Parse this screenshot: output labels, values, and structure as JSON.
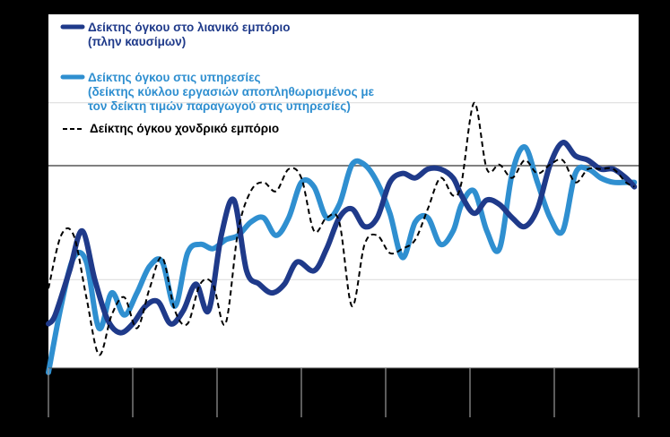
{
  "chart_data": {
    "type": "line",
    "title": "",
    "xlabel": "",
    "ylabel": "",
    "x_categories_count": 7,
    "x_tick_labels": [],
    "y_tick_labels": [],
    "ylim": [
      -4,
      4
    ],
    "reference_line_y": 0,
    "grid": "horizontal",
    "legend_placement": "top-left",
    "series": [
      {
        "name": "Δείκτης όγκου στο λιανικό εμπόριο",
        "name_line2": "(πλην καυσίμων)",
        "color": "#1F3A8A",
        "style": "solid-thick",
        "x": [
          0.0,
          0.08,
          0.25,
          0.4,
          0.55,
          0.7,
          0.85,
          1.0,
          1.15,
          1.3,
          1.45,
          1.6,
          1.75,
          1.9,
          2.05,
          2.2,
          2.35,
          2.5,
          2.65,
          2.8,
          2.95,
          3.15,
          3.3,
          3.45,
          3.6,
          3.75,
          3.9,
          4.05,
          4.2,
          4.35,
          4.5,
          4.65,
          4.8,
          4.9,
          5.05,
          5.2,
          5.35,
          5.5,
          5.65,
          5.8,
          5.95,
          6.1,
          6.25,
          6.4,
          6.55,
          6.7,
          6.85,
          6.95
        ],
        "values": [
          -3.0,
          -2.8,
          -1.8,
          -0.9,
          -2.0,
          -2.9,
          -3.2,
          -3.0,
          -2.6,
          -2.5,
          -3.0,
          -2.7,
          -2.1,
          -2.7,
          -1.0,
          -0.2,
          -1.8,
          -2.1,
          -2.3,
          -2.1,
          -1.6,
          -1.8,
          -1.3,
          -0.6,
          -0.4,
          -0.8,
          -0.6,
          0.2,
          0.4,
          0.3,
          0.5,
          0.5,
          0.3,
          -0.1,
          -0.5,
          -0.2,
          -0.3,
          -0.6,
          -0.8,
          -0.4,
          0.6,
          1.1,
          0.8,
          0.7,
          0.5,
          0.5,
          0.3,
          0.1
        ]
      },
      {
        "name": "Δείκτης όγκου στις υπηρεσίες",
        "name_line2": "(δείκτης κύκλου εργασιών αποπληθωρισμένος με",
        "name_line3": "τον δείκτη τιμών παραγωγού στις υπηρεσίες)",
        "color": "#2F8FD0",
        "style": "solid-thick",
        "x": [
          0.0,
          0.15,
          0.3,
          0.45,
          0.6,
          0.75,
          0.9,
          1.05,
          1.2,
          1.35,
          1.5,
          1.65,
          1.8,
          1.95,
          2.1,
          2.25,
          2.4,
          2.55,
          2.7,
          2.85,
          3.0,
          3.15,
          3.3,
          3.45,
          3.6,
          3.75,
          3.9,
          4.05,
          4.2,
          4.35,
          4.5,
          4.65,
          4.8,
          4.9,
          5.05,
          5.2,
          5.35,
          5.5,
          5.65,
          5.8,
          5.95,
          6.1,
          6.25,
          6.4,
          6.55,
          6.7,
          6.85,
          6.95
        ],
        "values": [
          -4.1,
          -2.6,
          -1.5,
          -1.6,
          -3.1,
          -2.3,
          -2.8,
          -2.3,
          -1.7,
          -1.6,
          -2.6,
          -1.4,
          -1.2,
          -1.3,
          -1.1,
          -1.0,
          -0.7,
          -0.6,
          -1.0,
          -0.6,
          0.2,
          0.1,
          -0.6,
          -0.3,
          0.6,
          0.6,
          0.2,
          -0.5,
          -1.5,
          -0.7,
          -0.6,
          -1.2,
          -0.9,
          -0.3,
          0.0,
          -0.9,
          -1.3,
          0.4,
          1.0,
          0.2,
          -0.6,
          -0.9,
          0.4,
          0.5,
          0.3,
          0.2,
          0.2,
          0.2
        ]
      },
      {
        "name": "Δείκτης όγκου χονδρικό εμπόριο",
        "color": "#000000",
        "style": "dashed",
        "x": [
          0.0,
          0.15,
          0.3,
          0.45,
          0.6,
          0.75,
          0.9,
          1.05,
          1.2,
          1.35,
          1.5,
          1.65,
          1.8,
          1.95,
          2.1,
          2.25,
          2.4,
          2.55,
          2.7,
          2.85,
          3.0,
          3.15,
          3.3,
          3.45,
          3.6,
          3.75,
          3.9,
          4.05,
          4.2,
          4.35,
          4.5,
          4.65,
          4.8,
          4.9,
          5.05,
          5.2,
          5.35,
          5.5,
          5.65,
          5.8,
          5.95,
          6.1,
          6.25,
          6.4,
          6.55,
          6.7,
          6.85,
          6.95
        ],
        "values": [
          -2.2,
          -1.0,
          -1.0,
          -2.4,
          -3.7,
          -2.8,
          -2.4,
          -3.1,
          -2.2,
          -1.5,
          -2.7,
          -3.0,
          -2.1,
          -2.1,
          -3.0,
          -0.9,
          0.0,
          0.2,
          0.0,
          0.5,
          0.3,
          -0.9,
          -0.6,
          -0.7,
          -2.6,
          -1.2,
          -1.0,
          -1.4,
          -1.3,
          -1.1,
          -0.4,
          0.3,
          -0.1,
          0.2,
          2.0,
          0.5,
          0.6,
          0.3,
          0.7,
          0.4,
          0.6,
          0.7,
          0.2,
          0.5,
          0.5,
          0.5,
          0.2,
          0.1
        ]
      }
    ]
  }
}
